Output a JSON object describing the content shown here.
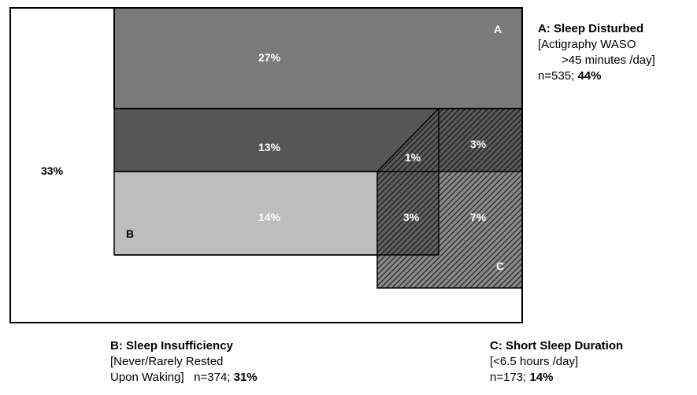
{
  "diagram": {
    "universe_label": "33%",
    "regions": {
      "a_only": "27%",
      "a_b": "13%",
      "a_b_c": "1%",
      "a_c": "3%",
      "b_only": "14%",
      "b_c": "3%",
      "c_only": "7%"
    },
    "set_letters": {
      "a": "A",
      "b": "B",
      "c": "C"
    },
    "colors": {
      "a_only": "#7a7a7a",
      "a_b": "#565656",
      "b_only": "#bdbdbd",
      "outline": "#000000"
    }
  },
  "legend": {
    "a": {
      "heading": "A: Sleep Disturbed",
      "line1": "[Actigraphy  WASO",
      "line2": ">45 minutes /day]",
      "count": "n=535; ",
      "percent": "44%"
    },
    "b": {
      "heading": "B: Sleep Insufficiency",
      "line1": "[Never/Rarely Rested",
      "line2": "Upon Waking]   n=374; ",
      "percent": "31%"
    },
    "c": {
      "heading": "C: Short Sleep Duration",
      "line1": "[<6.5 hours /day]",
      "count": "n=173; ",
      "percent": "14%"
    }
  }
}
